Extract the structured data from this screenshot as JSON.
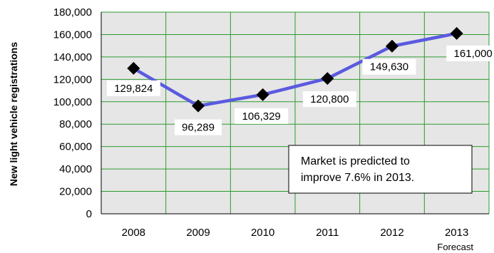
{
  "chart_data": {
    "type": "line",
    "ylabel": "New light vehicle registrations",
    "categories": [
      "2008",
      "2009",
      "2010",
      "2011",
      "2012",
      "2013"
    ],
    "category_sublabels": [
      "",
      "",
      "",
      "",
      "",
      "Forecast"
    ],
    "series": [
      {
        "values": [
          129824,
          96289,
          106329,
          120800,
          149630,
          161000
        ],
        "data_labels": [
          "129,824",
          "96,289",
          "106,329",
          "120,800",
          "149,630",
          "161,000"
        ]
      }
    ],
    "ylim": [
      0,
      180000
    ],
    "yticks": [
      0,
      20000,
      40000,
      60000,
      80000,
      100000,
      120000,
      140000,
      160000,
      180000
    ],
    "ytick_labels": [
      "0",
      "20,000",
      "40,000",
      "60,000",
      "80,000",
      "100,000",
      "120,000",
      "140,000",
      "160,000",
      "180,000"
    ],
    "annotation_lines": [
      "Market is predicted to",
      "improve 7.6% in 2013."
    ],
    "grid": true,
    "colors": {
      "plot_background": "#e6e6e6",
      "grid": "#2e9b2e",
      "line": "#5a5ae0",
      "marker": "#000000"
    }
  }
}
